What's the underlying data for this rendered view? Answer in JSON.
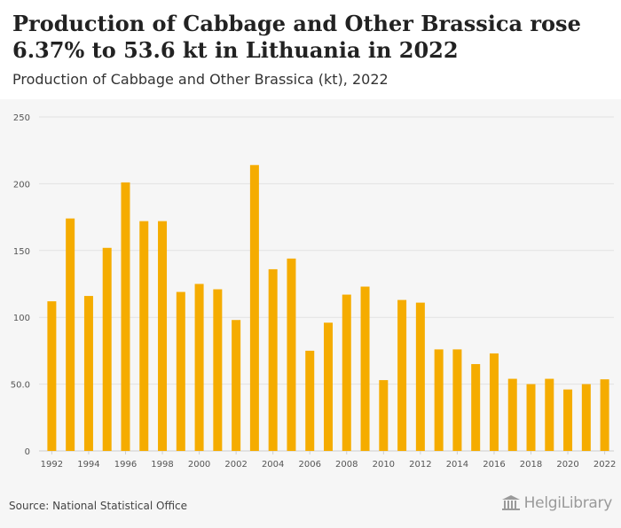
{
  "header": {
    "title": "Production of Cabbage and Other Brassica rose 6.37% to 53.6 kt in Lithuania in 2022",
    "subtitle": "Production of Cabbage and Other Brassica (kt), 2022"
  },
  "footer": {
    "source": "Source: National Statistical Office",
    "logo_text": "HelgiLibrary"
  },
  "colors": {
    "bar": "#f5ac00",
    "grid": "#e2e2e2",
    "axis_text": "#555555"
  },
  "chart_data": {
    "type": "bar",
    "x": [
      1992,
      1993,
      1994,
      1995,
      1996,
      1997,
      1998,
      1999,
      2000,
      2001,
      2002,
      2003,
      2004,
      2005,
      2006,
      2007,
      2008,
      2009,
      2010,
      2011,
      2012,
      2013,
      2014,
      2015,
      2016,
      2017,
      2018,
      2019,
      2020,
      2021,
      2022
    ],
    "values": [
      112,
      174,
      116,
      152,
      201,
      172,
      172,
      119,
      125,
      121,
      98,
      214,
      136,
      144,
      75,
      96,
      117,
      123,
      53,
      113,
      111,
      76,
      76,
      65,
      73,
      54,
      50,
      54,
      46,
      50,
      53.6
    ],
    "x_tick_labels": [
      "1992",
      "1994",
      "1996",
      "1998",
      "2000",
      "2002",
      "2004",
      "2006",
      "2008",
      "2010",
      "2012",
      "2014",
      "2016",
      "2018",
      "2020",
      "2022"
    ],
    "y_ticks": [
      0,
      50,
      100,
      150,
      200,
      250
    ],
    "y_tick_labels": [
      "0",
      "50.0",
      "100",
      "150",
      "200",
      "250"
    ],
    "ylim": [
      0,
      250
    ],
    "grid": true,
    "legend": "none"
  }
}
